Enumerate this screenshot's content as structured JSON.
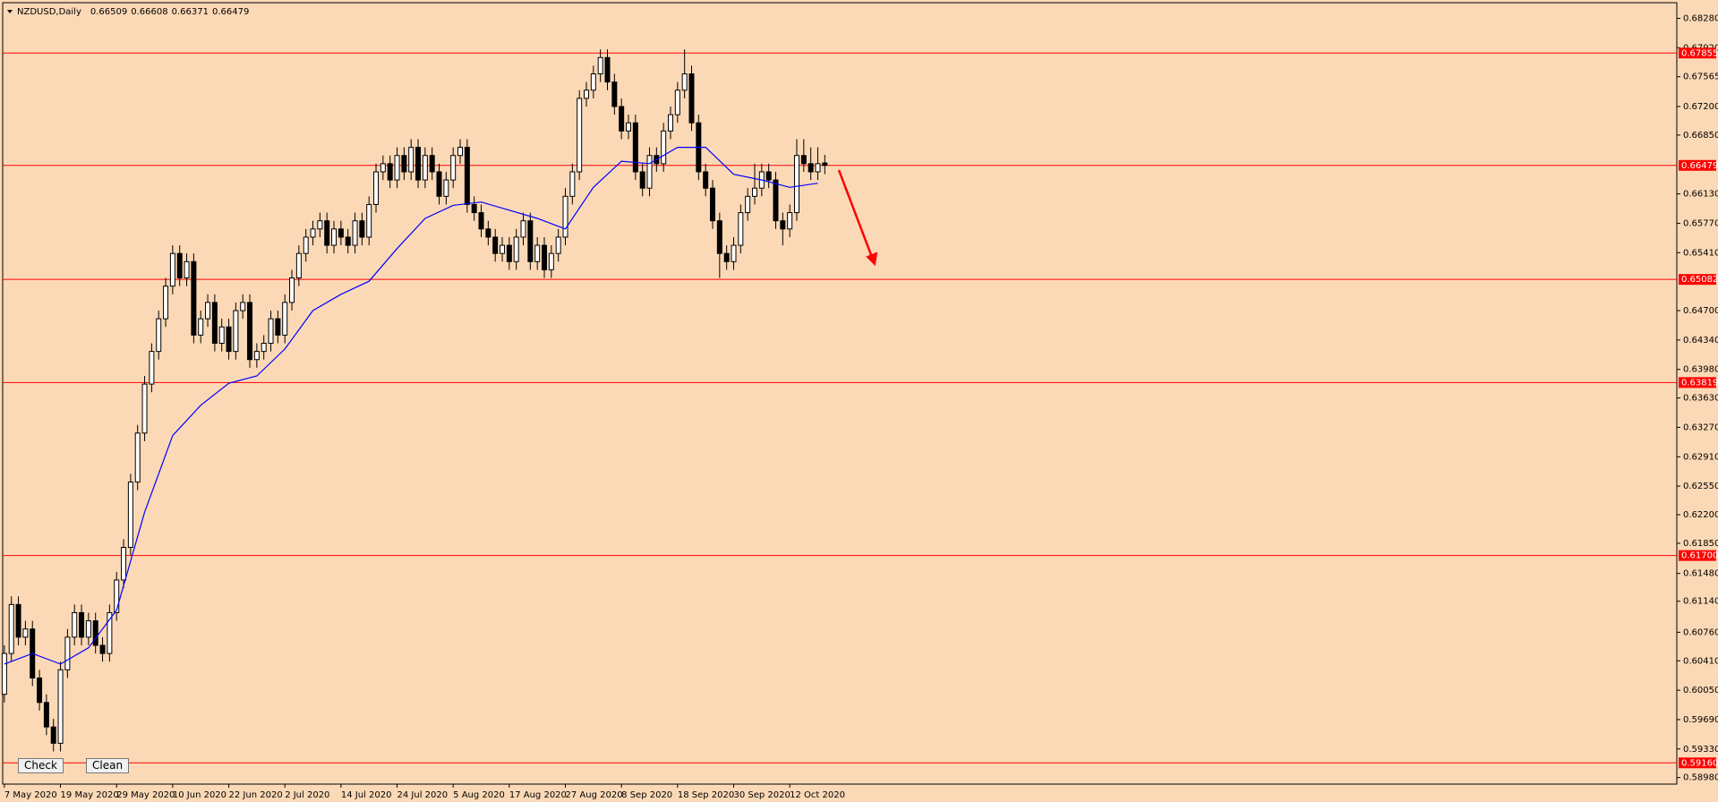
{
  "chart_data": {
    "type": "candlestick",
    "title": "NZDUSD,Daily",
    "categories": [
      "7 May 2020",
      null,
      null,
      null,
      null,
      null,
      null,
      null,
      "19 May 2020",
      null,
      null,
      null,
      null,
      null,
      null,
      null,
      "29 May 2020",
      null,
      null,
      null,
      null,
      null,
      null,
      null,
      "10 Jun 2020",
      null,
      null,
      null,
      null,
      null,
      null,
      null,
      "22 Jun 2020",
      null,
      null,
      null,
      null,
      null,
      null,
      null,
      "2 Jul 2020",
      null,
      null,
      null,
      null,
      null,
      null,
      null,
      "14 Jul 2020",
      null,
      null,
      null,
      null,
      null,
      null,
      null,
      "24 Jul 2020",
      null,
      null,
      null,
      null,
      null,
      null,
      null,
      "5 Aug 2020",
      null,
      null,
      null,
      null,
      null,
      null,
      null,
      "17 Aug 2020",
      null,
      null,
      null,
      null,
      null,
      null,
      null,
      "27 Aug 2020",
      null,
      null,
      null,
      null,
      null,
      null,
      null,
      "8 Sep 2020",
      null,
      null,
      null,
      null,
      null,
      null,
      null,
      "18 Sep 2020",
      null,
      null,
      null,
      null,
      null,
      null,
      null,
      "30 Sep 2020",
      null,
      null,
      null,
      null,
      null,
      null,
      null,
      "12 Oct 2020",
      null,
      null,
      null,
      null,
      null
    ],
    "open": [
      0.6,
      0.605,
      0.611,
      0.607,
      0.608,
      0.602,
      0.599,
      0.596,
      0.594,
      0.603,
      0.607,
      0.61,
      0.607,
      0.609,
      0.606,
      0.605,
      0.61,
      0.614,
      0.618,
      0.626,
      0.632,
      0.638,
      0.642,
      0.646,
      0.65,
      0.654,
      0.651,
      0.653,
      0.644,
      0.646,
      0.648,
      0.643,
      0.645,
      0.642,
      0.647,
      0.648,
      0.641,
      0.642,
      0.643,
      0.646,
      0.644,
      0.648,
      0.651,
      0.654,
      0.656,
      0.657,
      0.658,
      0.655,
      0.657,
      0.656,
      0.655,
      0.658,
      0.656,
      0.66,
      0.664,
      0.665,
      0.663,
      0.666,
      0.664,
      0.667,
      0.663,
      0.666,
      0.664,
      0.661,
      0.663,
      0.666,
      0.667,
      0.66,
      0.659,
      0.657,
      0.656,
      0.654,
      0.655,
      0.653,
      0.656,
      0.658,
      0.653,
      0.655,
      0.652,
      0.654,
      0.656,
      0.661,
      0.664,
      0.673,
      0.674,
      0.676,
      0.678,
      0.675,
      0.672,
      0.669,
      0.67,
      0.664,
      0.662,
      0.666,
      0.665,
      0.669,
      0.671,
      0.674,
      0.676,
      0.67,
      0.664,
      0.662,
      0.658,
      0.654,
      0.653,
      0.655,
      0.659,
      0.661,
      0.662,
      0.664,
      0.663,
      0.658,
      0.657,
      0.659,
      0.666,
      0.665,
      0.664,
      0.66509
    ],
    "high": [
      0.606,
      0.612,
      0.612,
      0.609,
      0.609,
      0.603,
      0.6,
      0.597,
      0.604,
      0.608,
      0.611,
      0.611,
      0.61,
      0.61,
      0.607,
      0.611,
      0.615,
      0.619,
      0.627,
      0.633,
      0.639,
      0.643,
      0.647,
      0.651,
      0.655,
      0.655,
      0.654,
      0.654,
      0.647,
      0.649,
      0.649,
      0.646,
      0.646,
      0.648,
      0.649,
      0.649,
      0.643,
      0.644,
      0.647,
      0.647,
      0.649,
      0.652,
      0.655,
      0.657,
      0.658,
      0.659,
      0.659,
      0.658,
      0.658,
      0.657,
      0.659,
      0.659,
      0.661,
      0.665,
      0.666,
      0.666,
      0.667,
      0.667,
      0.668,
      0.668,
      0.667,
      0.667,
      0.665,
      0.664,
      0.667,
      0.668,
      0.668,
      0.661,
      0.66,
      0.658,
      0.657,
      0.656,
      0.656,
      0.657,
      0.659,
      0.659,
      0.656,
      0.656,
      0.655,
      0.657,
      0.662,
      0.665,
      0.674,
      0.675,
      0.677,
      0.679,
      0.679,
      0.676,
      0.673,
      0.671,
      0.671,
      0.665,
      0.667,
      0.667,
      0.67,
      0.672,
      0.675,
      0.679,
      0.677,
      0.671,
      0.665,
      0.663,
      0.659,
      0.655,
      0.656,
      0.66,
      0.662,
      0.665,
      0.665,
      0.665,
      0.664,
      0.659,
      0.66,
      0.668,
      0.668,
      0.667,
      0.667,
      0.66608
    ],
    "low": [
      0.599,
      0.604,
      0.606,
      0.606,
      0.601,
      0.598,
      0.595,
      0.593,
      0.593,
      0.602,
      0.606,
      0.606,
      0.606,
      0.605,
      0.604,
      0.604,
      0.609,
      0.613,
      0.617,
      0.625,
      0.631,
      0.637,
      0.641,
      0.645,
      0.649,
      0.65,
      0.65,
      0.643,
      0.643,
      0.645,
      0.642,
      0.642,
      0.641,
      0.641,
      0.646,
      0.64,
      0.64,
      0.641,
      0.642,
      0.643,
      0.643,
      0.647,
      0.65,
      0.653,
      0.655,
      0.656,
      0.654,
      0.654,
      0.655,
      0.654,
      0.654,
      0.655,
      0.655,
      0.659,
      0.663,
      0.662,
      0.662,
      0.663,
      0.663,
      0.662,
      0.662,
      0.663,
      0.66,
      0.66,
      0.662,
      0.665,
      0.659,
      0.658,
      0.656,
      0.655,
      0.653,
      0.653,
      0.652,
      0.652,
      0.655,
      0.652,
      0.652,
      0.651,
      0.651,
      0.653,
      0.655,
      0.66,
      0.663,
      0.672,
      0.673,
      0.675,
      0.674,
      0.671,
      0.668,
      0.668,
      0.663,
      0.661,
      0.661,
      0.664,
      0.664,
      0.668,
      0.67,
      0.673,
      0.669,
      0.663,
      0.661,
      0.657,
      0.651,
      0.652,
      0.652,
      0.654,
      0.658,
      0.66,
      0.661,
      0.662,
      0.657,
      0.655,
      0.656,
      0.658,
      0.664,
      0.663,
      0.663,
      0.66371
    ],
    "close": [
      0.605,
      0.611,
      0.607,
      0.608,
      0.602,
      0.599,
      0.596,
      0.594,
      0.603,
      0.607,
      0.61,
      0.607,
      0.609,
      0.606,
      0.605,
      0.61,
      0.614,
      0.618,
      0.626,
      0.632,
      0.638,
      0.642,
      0.646,
      0.65,
      0.654,
      0.651,
      0.653,
      0.644,
      0.646,
      0.648,
      0.643,
      0.645,
      0.642,
      0.647,
      0.648,
      0.641,
      0.642,
      0.643,
      0.646,
      0.644,
      0.648,
      0.651,
      0.654,
      0.656,
      0.657,
      0.658,
      0.655,
      0.657,
      0.656,
      0.655,
      0.658,
      0.656,
      0.66,
      0.664,
      0.665,
      0.663,
      0.666,
      0.664,
      0.667,
      0.663,
      0.666,
      0.664,
      0.661,
      0.663,
      0.666,
      0.667,
      0.66,
      0.659,
      0.657,
      0.656,
      0.654,
      0.655,
      0.653,
      0.656,
      0.658,
      0.653,
      0.655,
      0.652,
      0.654,
      0.656,
      0.661,
      0.664,
      0.673,
      0.674,
      0.676,
      0.678,
      0.675,
      0.672,
      0.669,
      0.67,
      0.664,
      0.662,
      0.666,
      0.665,
      0.669,
      0.671,
      0.674,
      0.676,
      0.67,
      0.664,
      0.662,
      0.658,
      0.654,
      0.653,
      0.655,
      0.659,
      0.661,
      0.662,
      0.664,
      0.663,
      0.658,
      0.657,
      0.659,
      0.666,
      0.665,
      0.664,
      0.665,
      0.66479
    ],
    "up_color": "#ffffff",
    "down_color": "#000000",
    "ma": {
      "color": "#0000ff",
      "x": [
        0,
        4,
        8,
        12,
        16,
        20,
        24,
        28,
        32,
        36,
        40,
        44,
        48,
        52,
        56,
        60,
        64,
        68,
        72,
        76,
        80,
        84,
        88,
        92,
        96,
        100,
        104,
        108,
        112,
        116
      ],
      "values": [
        0.6037,
        0.605,
        0.6037,
        0.6057,
        0.6103,
        0.6223,
        0.6317,
        0.6354,
        0.6381,
        0.639,
        0.6423,
        0.647,
        0.649,
        0.6506,
        0.6546,
        0.6583,
        0.6599,
        0.6603,
        0.6593,
        0.6583,
        0.657,
        0.6621,
        0.6653,
        0.665,
        0.667,
        0.667,
        0.6637,
        0.663,
        0.6621,
        0.6626
      ]
    },
    "levels": {
      "color": "#ff0000",
      "lines": [
        {
          "value": 0.67855,
          "label": "0.67855"
        },
        {
          "value": 0.66479,
          "label": "0.66479"
        },
        {
          "value": 0.65082,
          "label": "0.65082"
        },
        {
          "value": 0.63819,
          "label": "0.63819"
        },
        {
          "value": 0.617,
          "label": "0.61700"
        },
        {
          "value": 0.5916,
          "label": "0.59160"
        }
      ]
    },
    "ylim": [
      0.589,
      0.6845
    ],
    "yticks": [
      {
        "value": 0.6828,
        "label": "0.68280"
      },
      {
        "value": 0.6792,
        "label": "0.67920"
      },
      {
        "value": 0.67565,
        "label": "0.67565"
      },
      {
        "value": 0.672,
        "label": "0.67200"
      },
      {
        "value": 0.6685,
        "label": "0.66850"
      },
      {
        "value": 0.6613,
        "label": "0.66130"
      },
      {
        "value": 0.6577,
        "label": "0.65770"
      },
      {
        "value": 0.6541,
        "label": "0.65410"
      },
      {
        "value": 0.647,
        "label": "0.64700"
      },
      {
        "value": 0.6434,
        "label": "0.64340"
      },
      {
        "value": 0.6398,
        "label": "0.63980"
      },
      {
        "value": 0.6363,
        "label": "0.63630"
      },
      {
        "value": 0.6327,
        "label": "0.63270"
      },
      {
        "value": 0.6291,
        "label": "0.62910"
      },
      {
        "value": 0.6255,
        "label": "0.62550"
      },
      {
        "value": 0.622,
        "label": "0.62200"
      },
      {
        "value": 0.6185,
        "label": "0.61850"
      },
      {
        "value": 0.6148,
        "label": "0.61480"
      },
      {
        "value": 0.6114,
        "label": "0.61140"
      },
      {
        "value": 0.6076,
        "label": "0.60760"
      },
      {
        "value": 0.6041,
        "label": "0.60410"
      },
      {
        "value": 0.6005,
        "label": "0.60050"
      },
      {
        "value": 0.5969,
        "label": "0.59690"
      },
      {
        "value": 0.5933,
        "label": "0.59330"
      },
      {
        "value": 0.5898,
        "label": "0.58980"
      }
    ],
    "grid": false
  },
  "buttons": [
    "Check",
    "Clean"
  ]
}
